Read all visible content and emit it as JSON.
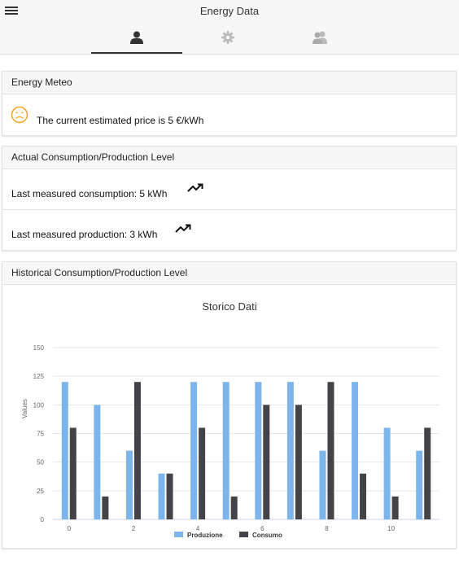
{
  "header": {
    "title": "Energy Data"
  },
  "tabs": [
    {
      "icon": "person-icon",
      "active": true
    },
    {
      "icon": "gear-icon",
      "active": false
    },
    {
      "icon": "group-icon",
      "active": false
    }
  ],
  "energy_meteo": {
    "title": "Energy Meteo",
    "mood_icon": "sad-face-icon",
    "price_text": "The current estimated price is 5 €/kWh"
  },
  "actual_level": {
    "title": "Actual Consumption/Production Level",
    "consumption_text": "Last measured consumption: 5 kWh",
    "production_text": "Last measured production: 3 kWh",
    "trend_icon": "trending-up-icon"
  },
  "historical": {
    "title": "Historical Consumption/Production Level"
  },
  "colors": {
    "produzione": "#7cb5ec",
    "consumo": "#434348",
    "accent_orange": "#f5a623"
  },
  "chart_data": {
    "type": "bar",
    "title": "Storico Dati",
    "ylabel": "Values",
    "xlabel": "",
    "ylim": [
      0,
      150
    ],
    "yticks": [
      0,
      25,
      50,
      75,
      100,
      125,
      150
    ],
    "x": [
      0,
      1,
      2,
      3,
      4,
      5,
      6,
      7,
      8,
      9,
      10,
      11
    ],
    "xtick_labels": [
      "0",
      "2",
      "4",
      "6",
      "8",
      "10"
    ],
    "xtick_positions": [
      0,
      2,
      4,
      6,
      8,
      10
    ],
    "grid": true,
    "legend_position": "bottom",
    "series": [
      {
        "name": "Produzione",
        "color": "#7cb5ec",
        "values": [
          120,
          100,
          60,
          40,
          120,
          120,
          120,
          120,
          60,
          120,
          80,
          60
        ]
      },
      {
        "name": "Consumo",
        "color": "#434348",
        "values": [
          80,
          20,
          120,
          40,
          80,
          20,
          100,
          100,
          120,
          40,
          20,
          80
        ]
      }
    ]
  }
}
